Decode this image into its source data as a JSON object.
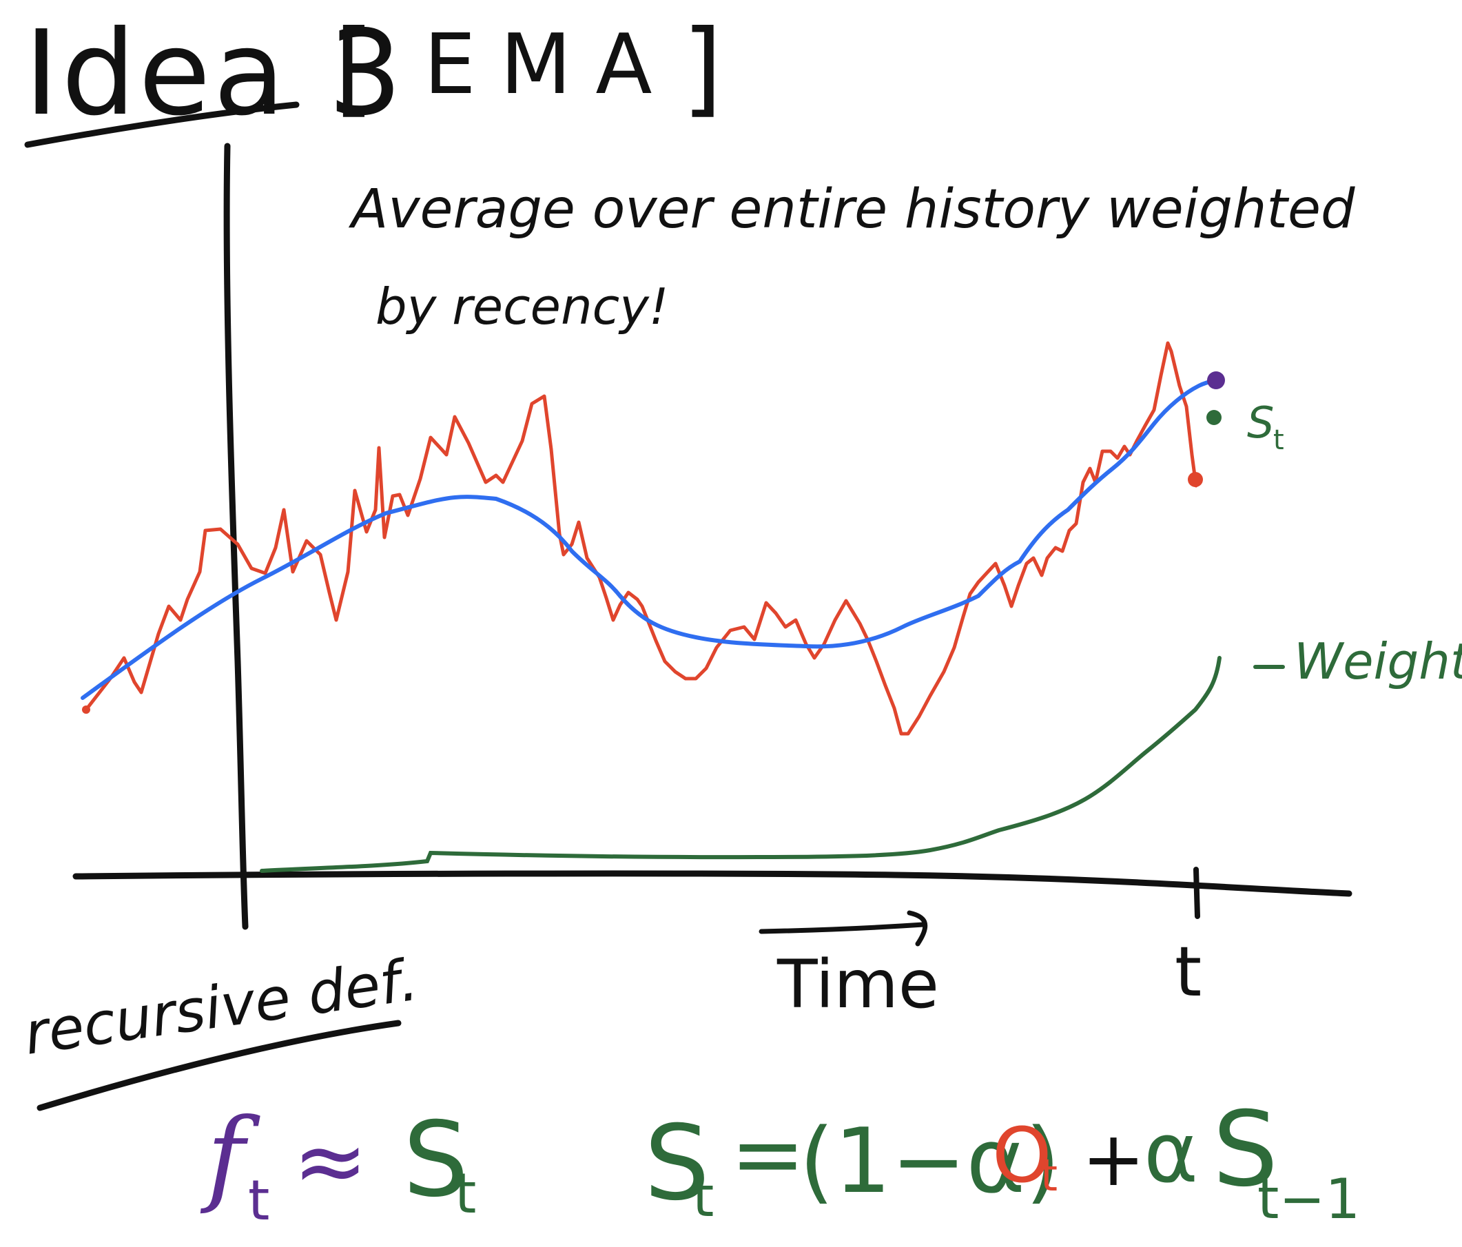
{
  "title": {
    "text": "Idea 3",
    "bracket_open": "[",
    "bracket_label": "EMA",
    "bracket_close": "]"
  },
  "description": {
    "line1": "Average over entire history weighted",
    "line2": "by recency!"
  },
  "axis": {
    "x_label": "Time",
    "t_tick": "t"
  },
  "legend": {
    "st_label": "S",
    "st_sub": "t",
    "weight_label": "Weight"
  },
  "recursive": {
    "heading": "recursive def."
  },
  "formulas": {
    "approx": {
      "f": "f",
      "f_sub": "t",
      "approx_sym": "≈",
      "s": "S",
      "s_sub": "t"
    },
    "ema": {
      "s": "S",
      "s_sub": "t",
      "eq": "=",
      "paren": "(1−α)",
      "o": "O",
      "o_sub": "t",
      "plus": "+",
      "alpha": "α",
      "s_prev": "S",
      "s_prev_sub": "t−1"
    }
  },
  "colors": {
    "ink": "#111111",
    "raw_series": "#e0452d",
    "ema_series": "#2f6ef0",
    "weight_series": "#2e6b3a",
    "forecast_point": "#5b2e91",
    "ema_point": "#2e6b3a",
    "obs_point": "#e0452d"
  }
}
